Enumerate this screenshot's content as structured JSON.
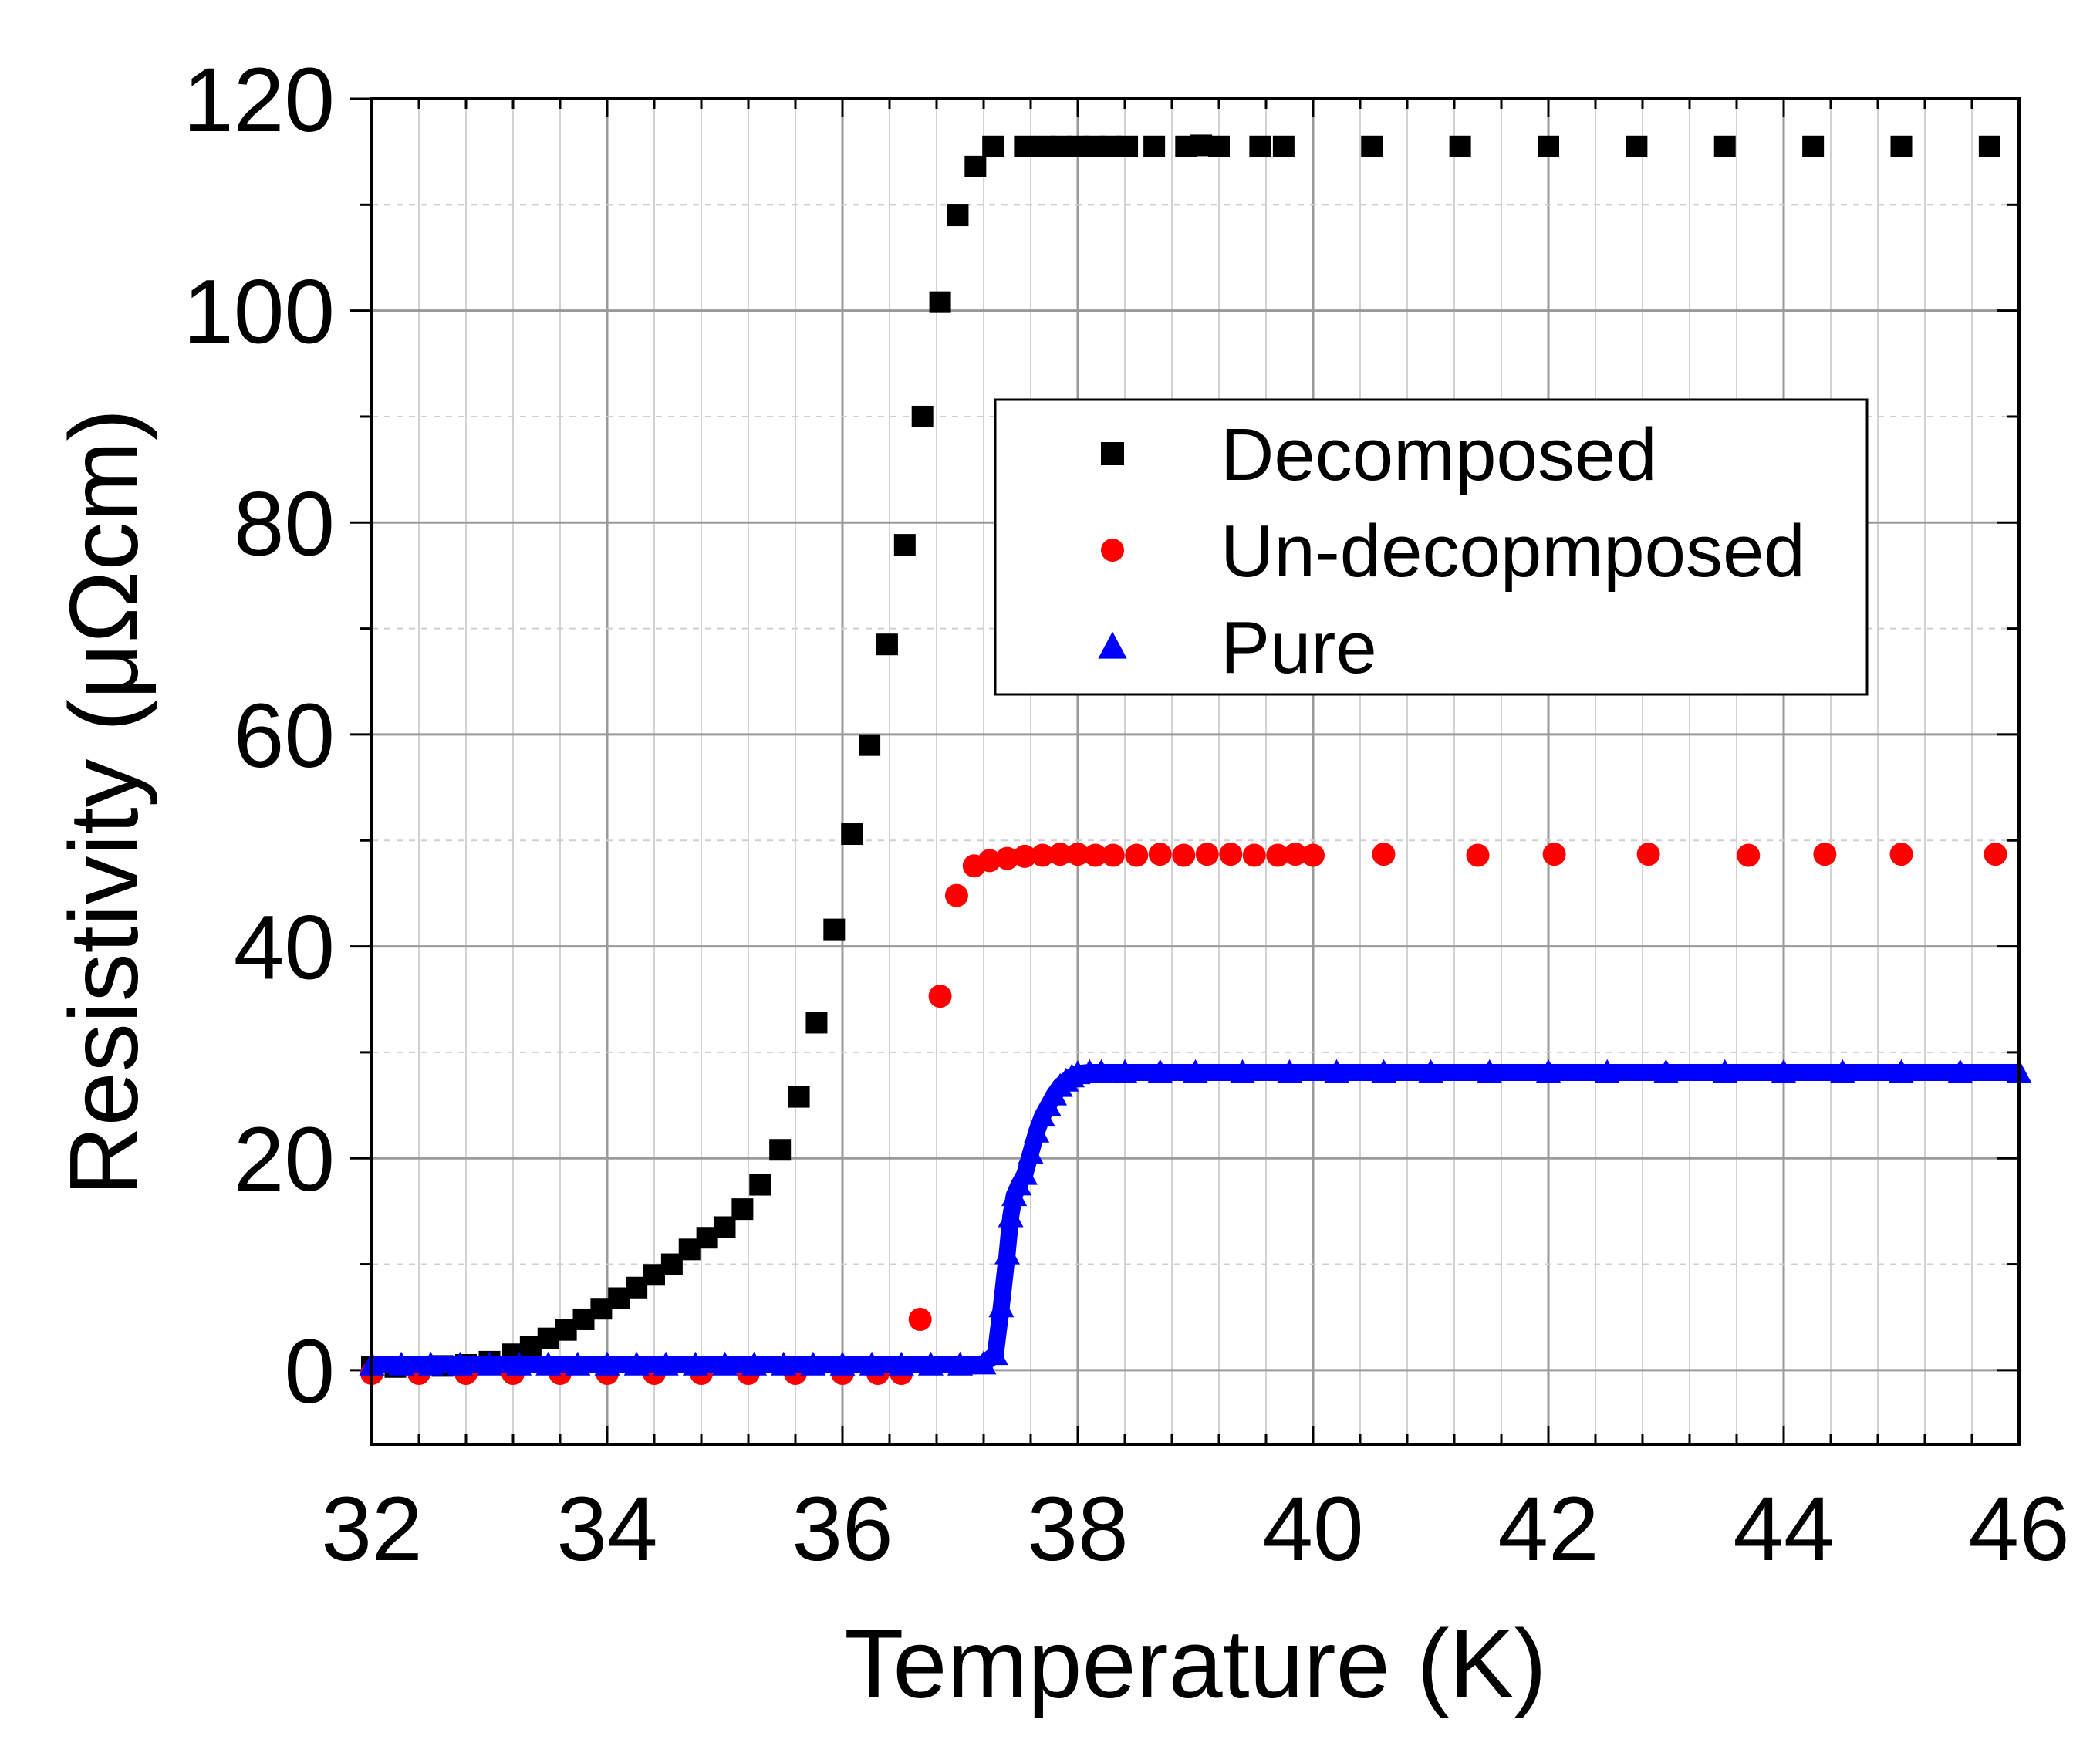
{
  "chart_data": {
    "type": "scatter",
    "title": "",
    "xlabel": "Temperature (K)",
    "ylabel": "Resistivity (μΩcm)",
    "xlim": [
      32,
      46
    ],
    "ylim": [
      -7,
      120
    ],
    "xticks": [
      32,
      34,
      36,
      38,
      40,
      42,
      44,
      46
    ],
    "yticks": [
      0,
      20,
      40,
      60,
      80,
      100,
      120
    ],
    "grid": true,
    "legend_position": "upper-center-right",
    "series": [
      {
        "name": "Decomposed",
        "marker": "square",
        "color": "#000000",
        "x": [
          32.0,
          32.2,
          32.4,
          32.6,
          32.8,
          33.0,
          33.2,
          33.35,
          33.5,
          33.65,
          33.8,
          33.95,
          34.1,
          34.25,
          34.4,
          34.55,
          34.7,
          34.85,
          35.0,
          35.15,
          35.3,
          35.47,
          35.63,
          35.78,
          35.93,
          36.08,
          36.23,
          36.38,
          36.53,
          36.68,
          36.83,
          36.98,
          37.13,
          37.28,
          37.55,
          37.72,
          37.86,
          38.0,
          38.14,
          38.28,
          38.42,
          38.65,
          38.92,
          39.05,
          39.2,
          39.55,
          39.75,
          40.5,
          41.25,
          42.0,
          42.75,
          43.5,
          44.25,
          45.0,
          45.75
        ],
        "y": [
          0.3,
          0.3,
          0.3,
          0.4,
          0.5,
          0.8,
          1.5,
          2.2,
          3.0,
          3.8,
          4.8,
          5.8,
          6.8,
          7.8,
          9.0,
          10.0,
          11.4,
          12.5,
          13.5,
          15.2,
          17.5,
          20.8,
          25.8,
          32.8,
          41.6,
          50.6,
          59.0,
          68.5,
          77.9,
          90.0,
          100.8,
          109.0,
          113.6,
          115.5,
          115.5,
          115.5,
          115.5,
          115.5,
          115.5,
          115.5,
          115.5,
          115.5,
          115.5,
          115.6,
          115.5,
          115.5,
          115.5,
          115.5,
          115.5,
          115.5,
          115.5,
          115.5,
          115.5,
          115.5,
          115.5
        ]
      },
      {
        "name": "Un-decopmposed",
        "marker": "circle",
        "color": "#ff0000",
        "x": [
          32.0,
          32.4,
          32.8,
          33.2,
          33.6,
          34.0,
          34.4,
          34.8,
          35.2,
          35.6,
          36.0,
          36.3,
          36.5,
          36.66,
          36.83,
          36.97,
          37.12,
          37.25,
          37.4,
          37.55,
          37.7,
          37.85,
          38.0,
          38.15,
          38.3,
          38.5,
          38.7,
          38.9,
          39.1,
          39.3,
          39.5,
          39.7,
          39.85,
          40.0,
          40.6,
          41.4,
          42.05,
          42.85,
          43.7,
          44.35,
          45.0,
          45.8
        ],
        "y": [
          -0.3,
          -0.3,
          -0.3,
          -0.3,
          -0.3,
          -0.3,
          -0.3,
          -0.3,
          -0.3,
          -0.3,
          -0.3,
          -0.3,
          -0.3,
          4.8,
          35.3,
          44.8,
          47.6,
          48.1,
          48.3,
          48.5,
          48.6,
          48.7,
          48.7,
          48.6,
          48.6,
          48.6,
          48.7,
          48.6,
          48.7,
          48.7,
          48.6,
          48.6,
          48.7,
          48.6,
          48.7,
          48.6,
          48.7,
          48.7,
          48.6,
          48.7,
          48.7,
          48.7
        ]
      },
      {
        "name": "Pure",
        "marker": "triangle",
        "color": "#0000ff",
        "x": [
          32.0,
          32.25,
          32.5,
          32.75,
          33.0,
          33.25,
          33.5,
          33.75,
          34.0,
          34.25,
          34.5,
          34.75,
          35.0,
          35.25,
          35.5,
          35.75,
          36.0,
          36.25,
          36.5,
          36.75,
          37.0,
          37.2,
          37.3,
          37.35,
          37.4,
          37.43,
          37.46,
          37.5,
          37.55,
          37.6,
          37.65,
          37.7,
          37.75,
          37.8,
          37.85,
          37.9,
          37.95,
          38.0,
          38.1,
          38.2,
          38.4,
          38.7,
          39.0,
          39.4,
          39.8,
          40.2,
          40.6,
          41.0,
          41.5,
          42.0,
          42.5,
          43.0,
          43.5,
          44.0,
          44.5,
          45.0,
          45.5,
          46.0
        ],
        "y": [
          0.5,
          0.5,
          0.5,
          0.5,
          0.5,
          0.5,
          0.5,
          0.5,
          0.5,
          0.5,
          0.5,
          0.5,
          0.5,
          0.5,
          0.5,
          0.5,
          0.5,
          0.5,
          0.5,
          0.5,
          0.5,
          0.6,
          1.5,
          6.0,
          11.0,
          14.5,
          16.5,
          17.5,
          18.5,
          20.5,
          22.5,
          24.0,
          25.0,
          26.0,
          26.8,
          27.3,
          27.7,
          28.0,
          28.1,
          28.1,
          28.1,
          28.1,
          28.1,
          28.1,
          28.1,
          28.1,
          28.1,
          28.1,
          28.1,
          28.1,
          28.1,
          28.1,
          28.1,
          28.1,
          28.1,
          28.1,
          28.1,
          28.1
        ]
      }
    ]
  }
}
